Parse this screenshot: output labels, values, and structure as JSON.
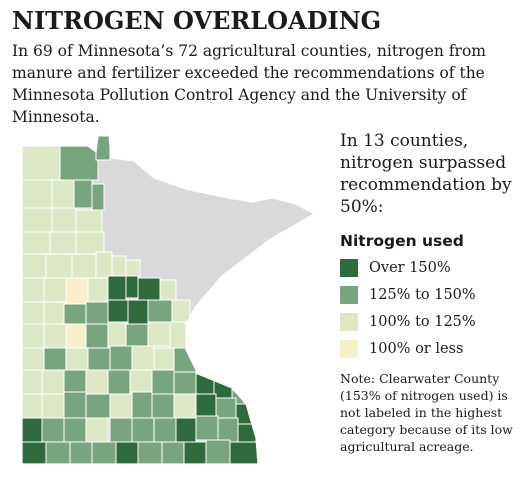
{
  "header": {
    "title": "NITROGEN OVERLOADING",
    "intro": "In 69 of Minnesota’s 72 agricultural counties, nitrogen from manure and fertilizer exceeded the recommendations of the Minnesota Pollution Control Agency and the University of Minnesota."
  },
  "callout": "In 13 counties, nitrogen surpassed recommendation by 50%:",
  "legend": {
    "title": "Nitrogen used",
    "items": [
      {
        "label": "Over 150%",
        "color": "#2e6a3b"
      },
      {
        "label": "125% to 150%",
        "color": "#79a57e"
      },
      {
        "label": "100% to 125%",
        "color": "#dce8c6"
      },
      {
        "label": "100% or less",
        "color": "#f8efcc"
      }
    ]
  },
  "note": "Note: Clearwater County (153% of nitrogen used) is not labeled in the highest category because of its low agricultural acreage.",
  "map": {
    "non_agricultural_color": "#d9d9d9",
    "border_color": "#ffffff"
  }
}
